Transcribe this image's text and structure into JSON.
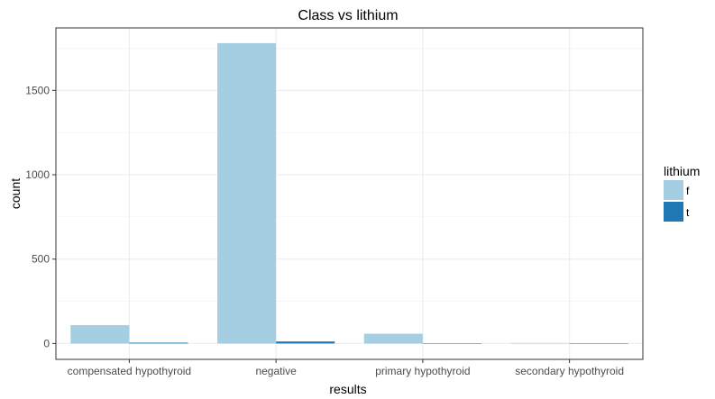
{
  "chart_data": {
    "type": "bar",
    "title": "Class vs lithium",
    "xlabel": "results",
    "ylabel": "count",
    "categories": [
      "compensated hypothyroid",
      "negative",
      "primary hypothyroid",
      "secondary hypothyroid"
    ],
    "series": [
      {
        "name": "f",
        "color": "#a6cee3",
        "values": [
          109,
          1780,
          58,
          3
        ]
      },
      {
        "name": "t",
        "color": "#1f78b4",
        "values": [
          5,
          12,
          0,
          0
        ]
      }
    ],
    "yticks": [
      0,
      500,
      1000,
      1500
    ],
    "ytick_labels": [
      "0",
      "500",
      "1000",
      "1500"
    ],
    "ylim": [
      -94,
      1870
    ],
    "grid": true,
    "legend": {
      "title": "lithium",
      "position": "right",
      "labels": [
        "f",
        "t"
      ]
    }
  }
}
